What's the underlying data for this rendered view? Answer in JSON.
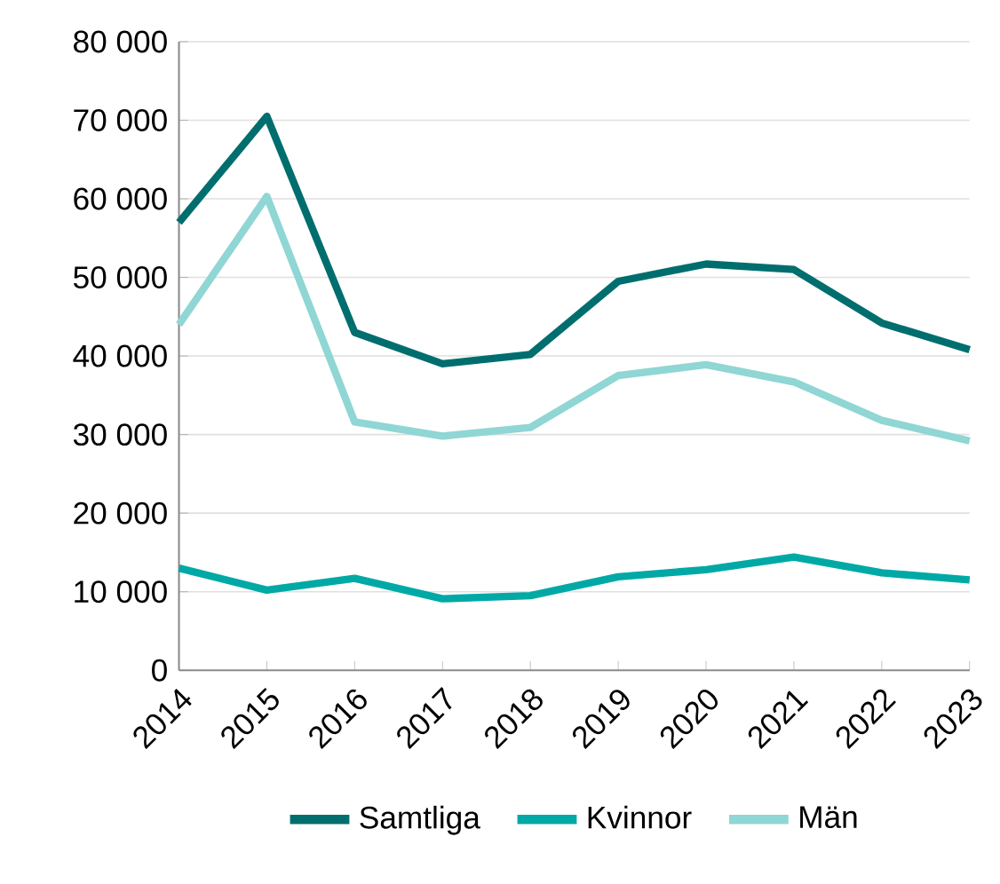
{
  "chart_data": {
    "type": "line",
    "categories": [
      "2014",
      "2015",
      "2016",
      "2017",
      "2018",
      "2019",
      "2020",
      "2021",
      "2022",
      "2023"
    ],
    "series": [
      {
        "name": "Samtliga",
        "color": "#006e6e",
        "values": [
          57000,
          70500,
          43000,
          39000,
          40200,
          49500,
          51700,
          51000,
          44200,
          40800
        ]
      },
      {
        "name": "Kvinnor",
        "color": "#00a9a5",
        "values": [
          13000,
          10200,
          11700,
          9100,
          9500,
          11900,
          12800,
          14400,
          12400,
          11500
        ]
      },
      {
        "name": "Män",
        "color": "#8fd6d4",
        "values": [
          44000,
          60300,
          31600,
          29800,
          30900,
          37500,
          38900,
          36700,
          31800,
          29200
        ]
      }
    ],
    "ylim": [
      0,
      80000
    ],
    "yticks": [
      0,
      {
        "value": 10000,
        "label": "10 000"
      },
      {
        "value": 20000,
        "label": "20 000"
      },
      {
        "value": 30000,
        "label": "30 000"
      },
      {
        "value": 40000,
        "label": "40 000"
      },
      {
        "value": 50000,
        "label": "50 000"
      },
      {
        "value": 60000,
        "label": "60 000"
      },
      {
        "value": 70000,
        "label": "70 000"
      },
      {
        "value": 80000,
        "label": "80 000"
      }
    ],
    "grid": "y",
    "legend": "bottom",
    "marker": "none",
    "line_style": "solid"
  }
}
